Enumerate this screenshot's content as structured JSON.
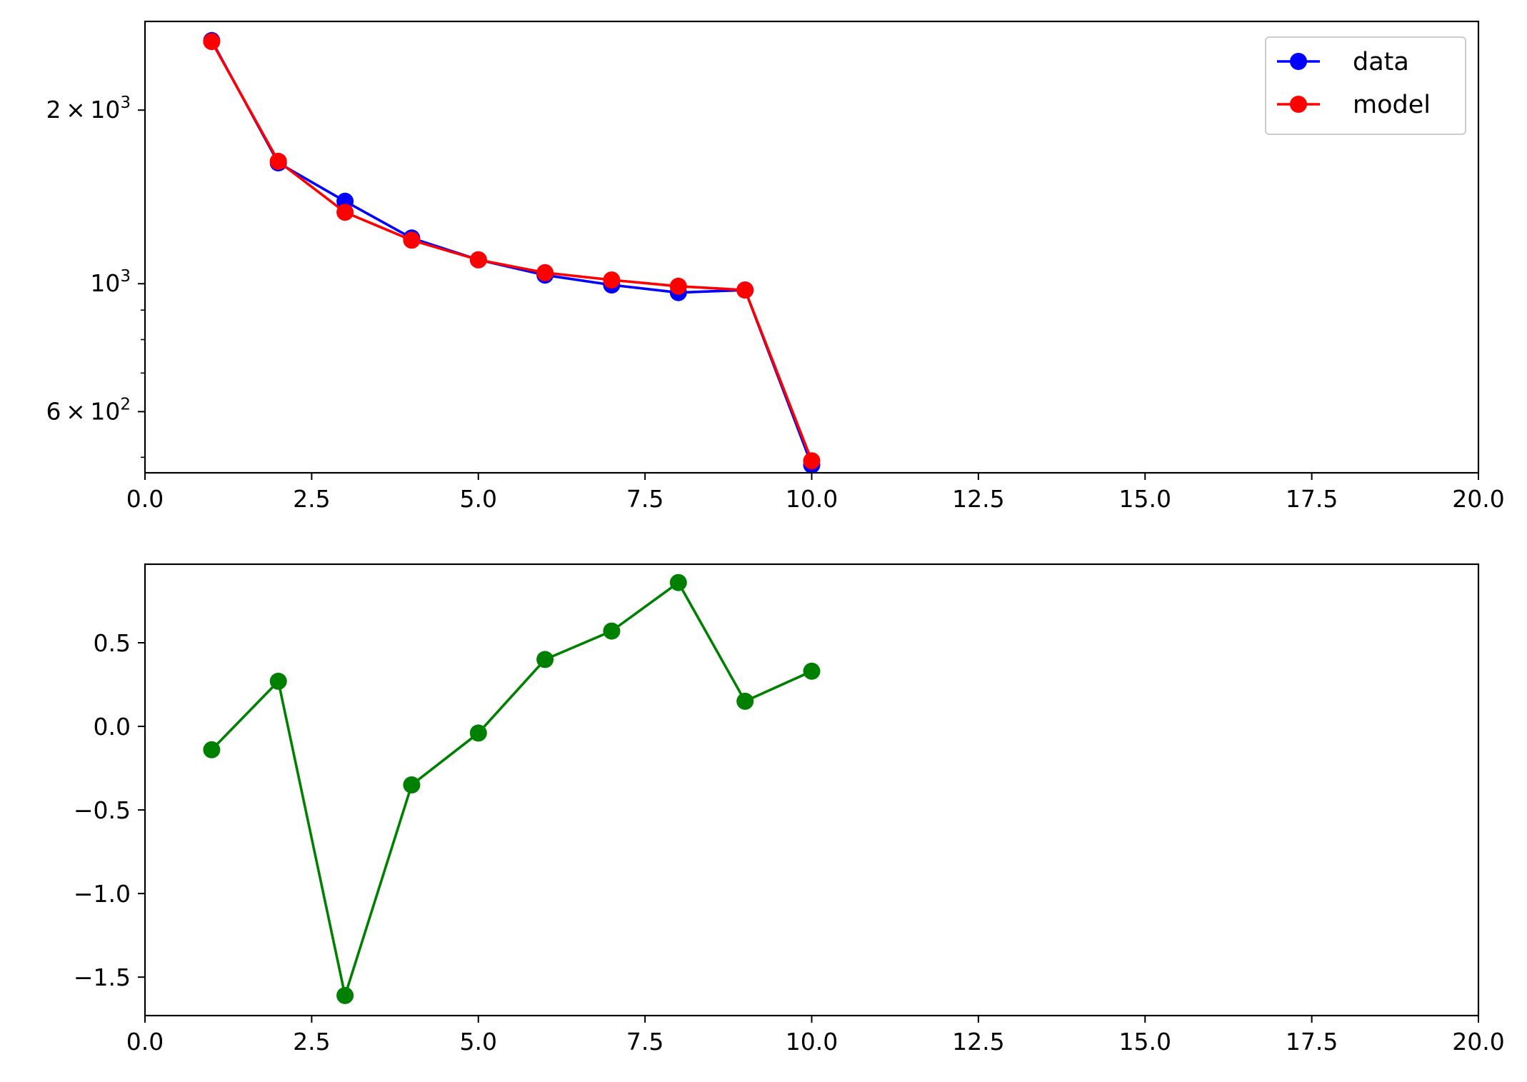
{
  "chart_data": [
    {
      "type": "line",
      "title": "",
      "xlabel": "",
      "ylabel": "",
      "yscale": "log",
      "xlim": [
        0,
        20
      ],
      "ylim": [
        470,
        2850
      ],
      "xticks": [
        0,
        2.5,
        5,
        7.5,
        10,
        12.5,
        15,
        17.5,
        20
      ],
      "xtick_labels": [
        "0.0",
        "2.5",
        "5.0",
        "7.5",
        "10.0",
        "12.5",
        "15.0",
        "17.5",
        "20.0"
      ],
      "yticks": [
        {
          "value": 2000,
          "base": "2 × 10",
          "exp": "3"
        },
        {
          "value": 1000,
          "base": "10",
          "exp": "3"
        },
        {
          "value": 600,
          "base": "6 × 10",
          "exp": "2"
        }
      ],
      "minor_yticks": [
        500,
        700,
        800,
        900
      ],
      "grid": false,
      "legend": "upper right",
      "series": [
        {
          "name": "data",
          "color": "#0000ff",
          "marker": "circle",
          "x": [
            1,
            2,
            3,
            4,
            5,
            6,
            7,
            8,
            9,
            10
          ],
          "y": [
            2640,
            1620,
            1390,
            1200,
            1100,
            1035,
            995,
            965,
            975,
            485
          ]
        },
        {
          "name": "model",
          "color": "#ff0000",
          "marker": "circle",
          "x": [
            1,
            2,
            3,
            4,
            5,
            6,
            7,
            8,
            9,
            10
          ],
          "y": [
            2630,
            1630,
            1330,
            1190,
            1100,
            1045,
            1015,
            990,
            975,
            493
          ]
        }
      ]
    },
    {
      "type": "line",
      "title": "",
      "xlabel": "",
      "ylabel": "",
      "xlim": [
        0,
        20
      ],
      "ylim": [
        -1.73,
        0.97
      ],
      "xticks": [
        0,
        2.5,
        5,
        7.5,
        10,
        12.5,
        15,
        17.5,
        20
      ],
      "xtick_labels": [
        "0.0",
        "2.5",
        "5.0",
        "7.5",
        "10.0",
        "12.5",
        "15.0",
        "17.5",
        "20.0"
      ],
      "yticks": [
        0.5,
        0,
        -0.5,
        -1,
        -1.5
      ],
      "ytick_labels": [
        "0.5",
        "0.0",
        "−0.5",
        "−1.0",
        "−1.5"
      ],
      "grid": false,
      "series": [
        {
          "color": "#008000",
          "marker": "circle",
          "x": [
            1,
            2,
            3,
            4,
            5,
            6,
            7,
            8,
            9,
            10
          ],
          "y": [
            -0.14,
            0.27,
            -1.61,
            -0.35,
            -0.04,
            0.4,
            0.57,
            0.86,
            0.15,
            0.33
          ]
        }
      ]
    }
  ]
}
